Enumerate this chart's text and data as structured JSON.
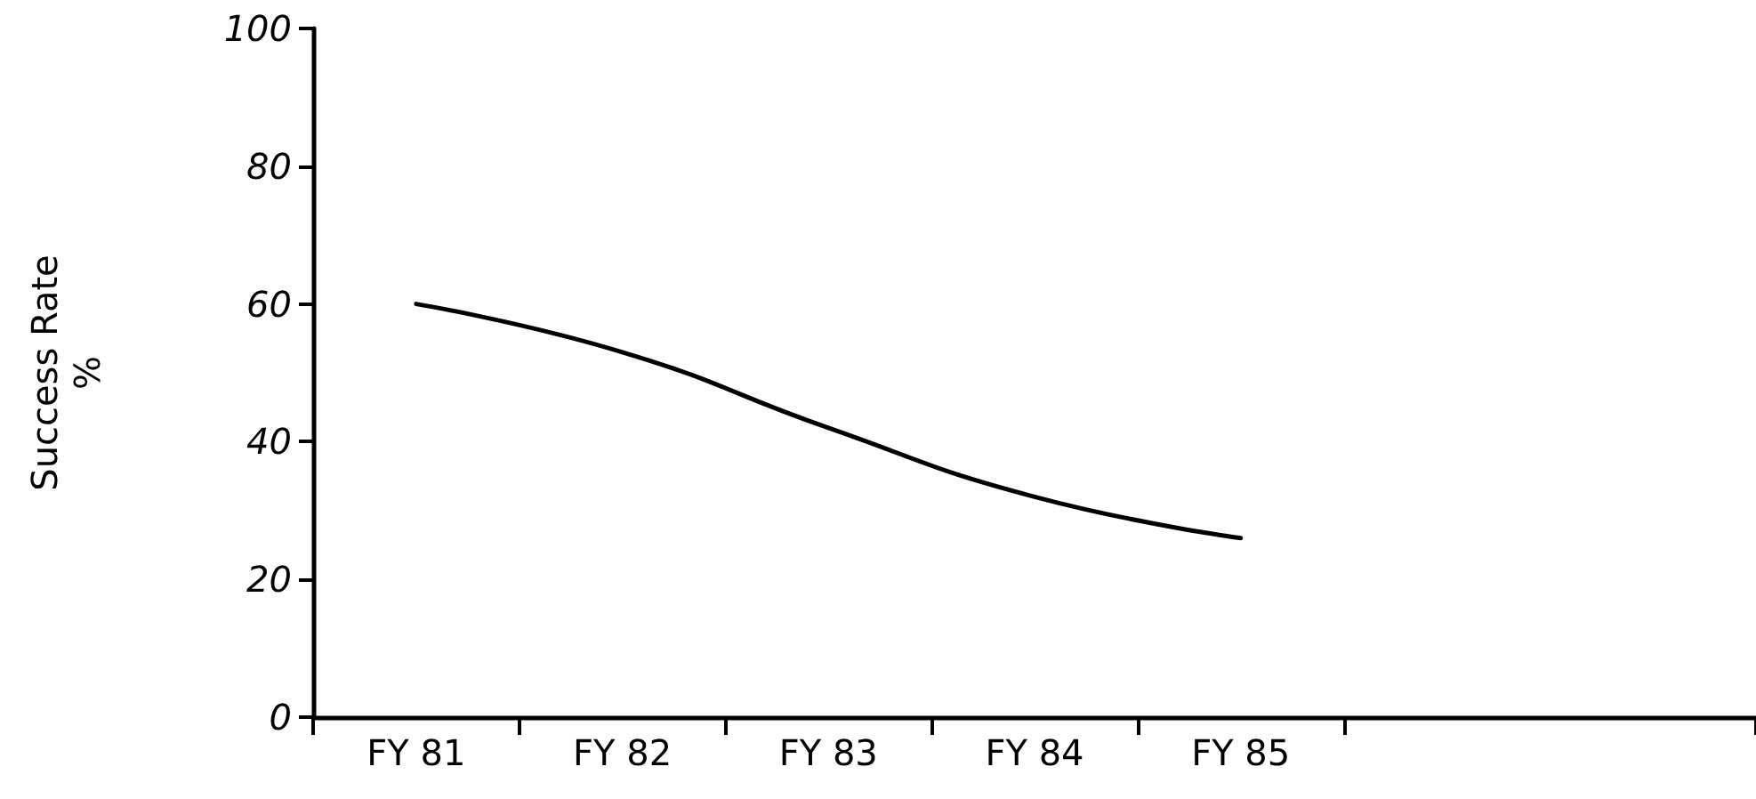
{
  "chart_data": {
    "type": "line",
    "ylabel": "Success Rate\n%",
    "categories": [
      "FY 81",
      "FY 82",
      "FY 83",
      "FY 84",
      "FY 85",
      null,
      null
    ],
    "series": [
      {
        "color": "#000000",
        "values": [
          60,
          53,
          42,
          32,
          26,
          null,
          null
        ]
      }
    ],
    "ylim": [
      0,
      100
    ],
    "yticks": [
      0,
      20,
      40,
      60,
      80,
      100
    ],
    "marker": "none",
    "line_style": "solid"
  }
}
